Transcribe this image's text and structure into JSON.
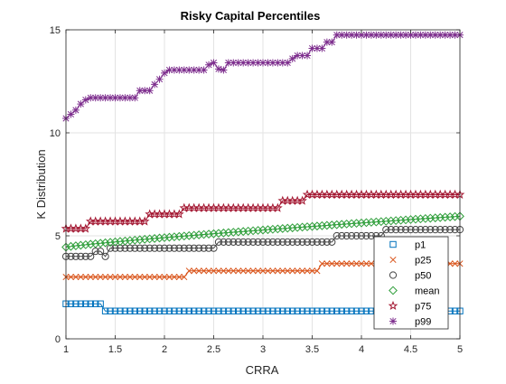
{
  "chart_data": {
    "type": "line",
    "title": "Risky Capital Percentiles",
    "xlabel": "CRRA",
    "ylabel": "K Distribution",
    "xlim": [
      1,
      5
    ],
    "ylim": [
      0,
      15
    ],
    "xticks": [
      1,
      1.5,
      2,
      2.5,
      3,
      3.5,
      4,
      4.5,
      5
    ],
    "xtick_labels": [
      "1",
      "1.5",
      "2",
      "2.5",
      "3",
      "3.5",
      "4",
      "4.5",
      "5"
    ],
    "yticks": [
      0,
      5,
      10,
      15
    ],
    "ytick_labels": [
      "0",
      "5",
      "10",
      "15"
    ],
    "grid": true,
    "legend_position": "bottom-right",
    "x": {
      "start": 1,
      "end": 5,
      "count": 81
    },
    "series": [
      {
        "name": "p1",
        "color": "#0072BD",
        "marker": "square",
        "steps": [
          [
            1.0,
            1.7
          ],
          [
            1.4,
            1.35
          ],
          [
            5.0,
            1.35
          ]
        ]
      },
      {
        "name": "p25",
        "color": "#D95319",
        "marker": "x",
        "steps": [
          [
            1.0,
            3.0
          ],
          [
            2.25,
            3.3
          ],
          [
            3.6,
            3.65
          ],
          [
            5.0,
            3.65
          ]
        ]
      },
      {
        "name": "p50",
        "color": "#444444",
        "marker": "circle",
        "steps": [
          [
            1.0,
            4.0
          ],
          [
            1.3,
            4.25
          ],
          [
            1.4,
            4.0
          ],
          [
            1.45,
            4.4
          ],
          [
            2.55,
            4.7
          ],
          [
            3.75,
            5.0
          ],
          [
            4.25,
            5.3
          ],
          [
            5.0,
            5.3
          ]
        ]
      },
      {
        "name": "mean",
        "color": "#2E9E3A",
        "marker": "diamond",
        "curve": {
          "start": 4.45,
          "end": 5.95,
          "power": 0.85
        }
      },
      {
        "name": "p75",
        "color": "#A2142F",
        "marker": "star",
        "steps": [
          [
            1.0,
            5.35
          ],
          [
            1.25,
            5.7
          ],
          [
            1.85,
            6.05
          ],
          [
            2.2,
            6.35
          ],
          [
            3.2,
            6.7
          ],
          [
            3.45,
            7.0
          ],
          [
            5.0,
            7.0
          ]
        ]
      },
      {
        "name": "p99",
        "color": "#7E2F8E",
        "marker": "asterisk",
        "points": [
          [
            1.0,
            10.7
          ],
          [
            1.05,
            10.9
          ],
          [
            1.1,
            11.1
          ],
          [
            1.15,
            11.4
          ],
          [
            1.2,
            11.6
          ],
          [
            1.25,
            11.7
          ],
          [
            1.7,
            11.7
          ],
          [
            1.75,
            12.05
          ],
          [
            1.85,
            12.05
          ],
          [
            1.9,
            12.35
          ],
          [
            1.95,
            12.6
          ],
          [
            2.0,
            12.9
          ],
          [
            2.05,
            13.05
          ],
          [
            2.4,
            13.05
          ],
          [
            2.45,
            13.3
          ],
          [
            2.5,
            13.4
          ],
          [
            2.55,
            13.1
          ],
          [
            2.6,
            13.05
          ],
          [
            2.65,
            13.4
          ],
          [
            3.25,
            13.4
          ],
          [
            3.3,
            13.6
          ],
          [
            3.35,
            13.75
          ],
          [
            3.45,
            13.75
          ],
          [
            3.5,
            14.1
          ],
          [
            3.6,
            14.1
          ],
          [
            3.65,
            14.4
          ],
          [
            3.7,
            14.4
          ],
          [
            3.75,
            14.75
          ],
          [
            5.0,
            14.75
          ]
        ]
      }
    ]
  }
}
